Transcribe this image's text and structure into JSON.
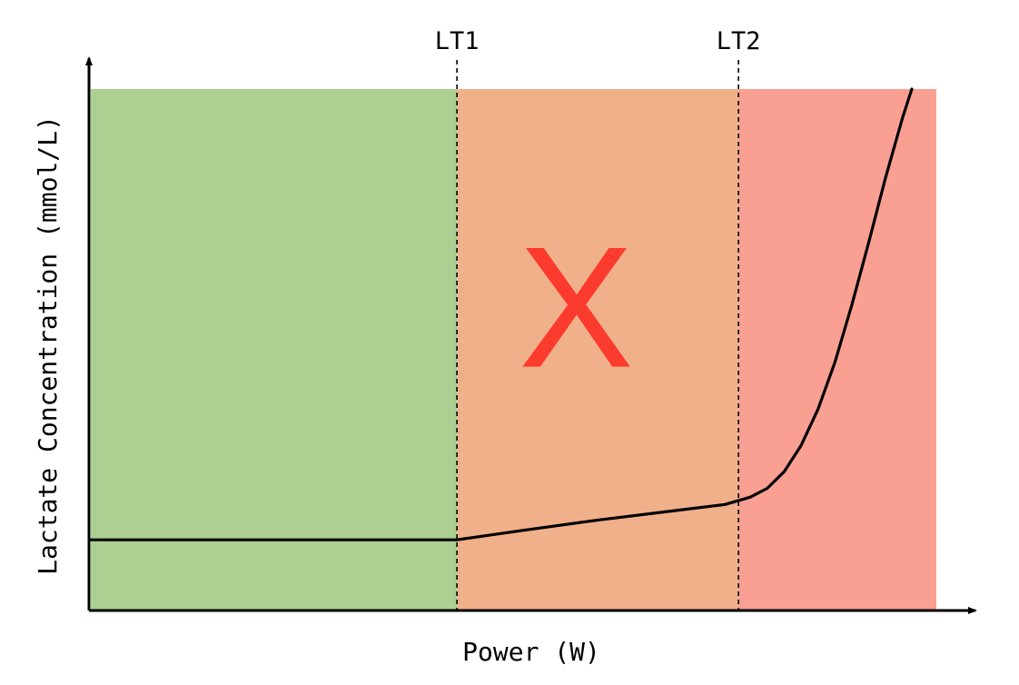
{
  "chart_data": {
    "type": "line",
    "title": "",
    "xlabel": "Power (W)",
    "ylabel": "Lactate Concentration (mmol/L)",
    "xlim": [
      0,
      100
    ],
    "ylim": [
      0,
      100
    ],
    "x_ticks_shown": false,
    "y_ticks_shown": false,
    "grid": false,
    "zones": [
      {
        "from": 0,
        "to": 43.3,
        "color": "#acd092"
      },
      {
        "from": 43.3,
        "to": 76.6,
        "color": "#f0b089"
      },
      {
        "from": 76.6,
        "to": 100,
        "color": "#f9a093"
      }
    ],
    "thresholds": [
      {
        "label": "LT1",
        "x": 43.3
      },
      {
        "label": "LT2",
        "x": 76.6
      }
    ],
    "marker": {
      "text": "X",
      "color": "#fb3b2e",
      "x": 57.4,
      "y": 58
    },
    "series": [
      {
        "color": "#000000",
        "points": [
          [
            0,
            13.4
          ],
          [
            43.3,
            13.4
          ],
          [
            51,
            15.2
          ],
          [
            60,
            17.2
          ],
          [
            70,
            19.2
          ],
          [
            75,
            20.2
          ],
          [
            78,
            21.6
          ],
          [
            80,
            23.3
          ],
          [
            82,
            26.5
          ],
          [
            84,
            31.5
          ],
          [
            86,
            38.5
          ],
          [
            88,
            47.5
          ],
          [
            90,
            58.5
          ],
          [
            92,
            70.5
          ],
          [
            94,
            83
          ],
          [
            96,
            94.5
          ],
          [
            97.1,
            100
          ]
        ]
      }
    ]
  }
}
